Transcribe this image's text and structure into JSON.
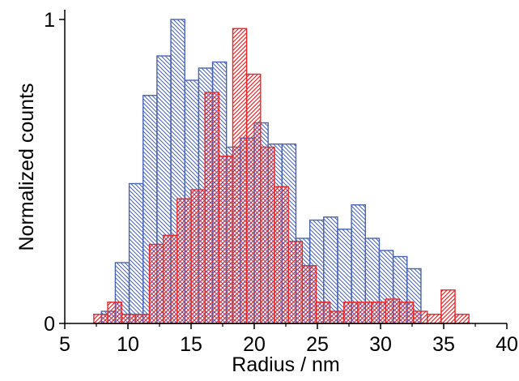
{
  "chart_data": {
    "type": "bar",
    "xlabel": "Radius / nm",
    "ylabel": "Normalized counts",
    "xlim": [
      5,
      40
    ],
    "ylim": [
      0,
      1
    ],
    "x_ticks": [
      "5",
      "10",
      "15",
      "20",
      "25",
      "30",
      "35",
      "40"
    ],
    "y_ticks": [
      "0",
      "1"
    ],
    "bin_width": 1.1,
    "grid": false,
    "legend": "none",
    "series": [
      {
        "color": "#4a63b5",
        "hatch": "backslash",
        "x": [
          7.9,
          9.0,
          10.1,
          11.2,
          12.3,
          13.4,
          14.5,
          15.6,
          16.7,
          17.8,
          18.9,
          20.0,
          21.1,
          22.2,
          23.3,
          24.4,
          25.5,
          26.6,
          27.7,
          28.8,
          29.9,
          31.0,
          32.1
        ],
        "values": [
          0.04,
          0.2,
          0.46,
          0.75,
          0.88,
          1.0,
          0.8,
          0.84,
          0.86,
          0.58,
          0.61,
          0.66,
          0.59,
          0.59,
          0.28,
          0.34,
          0.35,
          0.31,
          0.39,
          0.28,
          0.24,
          0.22,
          0.18
        ]
      },
      {
        "color": "#e8282b",
        "hatch": "slash",
        "x": [
          7.3,
          8.4,
          9.5,
          10.6,
          11.7,
          12.8,
          13.9,
          15.0,
          16.1,
          17.2,
          18.3,
          19.4,
          20.5,
          21.6,
          22.7,
          23.8,
          24.9,
          26.0,
          27.1,
          28.2,
          29.3,
          30.4,
          31.5,
          32.6,
          33.7,
          34.8,
          35.9
        ],
        "values": [
          0.03,
          0.07,
          0.03,
          0.03,
          0.26,
          0.29,
          0.41,
          0.44,
          0.76,
          0.55,
          0.97,
          0.82,
          0.58,
          0.45,
          0.27,
          0.19,
          0.07,
          0.04,
          0.07,
          0.07,
          0.07,
          0.08,
          0.07,
          0.04,
          0.03,
          0.11,
          0.03
        ]
      }
    ]
  }
}
